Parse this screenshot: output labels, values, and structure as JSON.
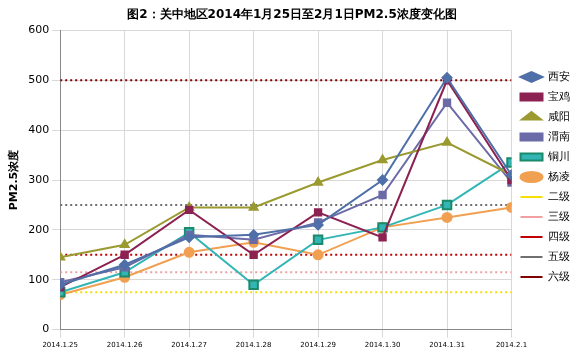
{
  "chart_data": {
    "type": "line",
    "title": "图2：关中地区2014年1月25日至2月1日PM2.5浓度变化图",
    "y_label": "PM2.5浓度",
    "categories": [
      "2014.1.25",
      "2014.1.26",
      "2014.1.27",
      "2014.1.28",
      "2014.1.29",
      "2014.1.30",
      "2014.1.31",
      "2014.2.1"
    ],
    "ylim": [
      0,
      600
    ],
    "yticks": [
      0,
      100,
      200,
      300,
      400,
      500,
      600
    ],
    "grid": true,
    "legend": "right",
    "series": [
      {
        "name": "西安",
        "color": "#4f6fa8",
        "marker": "diamond",
        "line_style": "solid",
        "values": [
          90,
          130,
          185,
          190,
          210,
          300,
          505,
          310
        ]
      },
      {
        "name": "宝鸡",
        "color": "#8b2252",
        "marker": "square",
        "line_style": "solid",
        "values": [
          85,
          150,
          240,
          150,
          235,
          185,
          500,
          300
        ]
      },
      {
        "name": "咸阳",
        "color": "#9a9a30",
        "marker": "triangle",
        "line_style": "solid",
        "values": [
          145,
          170,
          245,
          245,
          295,
          340,
          375,
          310
        ]
      },
      {
        "name": "渭南",
        "color": "#6b6ba8",
        "marker": "square",
        "line_style": "solid",
        "values": [
          95,
          125,
          190,
          180,
          215,
          270,
          455,
          295
        ]
      },
      {
        "name": "铜川",
        "color": "#33b5b5",
        "marker": "x-square",
        "line_style": "solid",
        "values": [
          75,
          115,
          195,
          90,
          180,
          205,
          250,
          335
        ]
      },
      {
        "name": "杨凌",
        "color": "#f0a050",
        "marker": "circle",
        "line_style": "solid",
        "values": [
          70,
          105,
          155,
          175,
          150,
          205,
          225,
          245
        ]
      },
      {
        "name": "二级",
        "color": "#f5e000",
        "marker": "none",
        "line_style": "dotted",
        "values": [
          75,
          75,
          75,
          75,
          75,
          75,
          75,
          75
        ]
      },
      {
        "name": "三级",
        "color": "#f0a0a0",
        "marker": "none",
        "line_style": "dotted",
        "values": [
          115,
          115,
          115,
          115,
          115,
          115,
          115,
          115
        ]
      },
      {
        "name": "四级",
        "color": "#c00000",
        "marker": "none",
        "line_style": "dotted",
        "values": [
          150,
          150,
          150,
          150,
          150,
          150,
          150,
          150
        ]
      },
      {
        "name": "五级",
        "color": "#707070",
        "marker": "none",
        "line_style": "dotted",
        "values": [
          250,
          250,
          250,
          250,
          250,
          250,
          250,
          250
        ]
      },
      {
        "name": "六级",
        "color": "#800000",
        "marker": "none",
        "line_style": "dotted",
        "values": [
          500,
          500,
          500,
          500,
          500,
          500,
          500,
          500
        ]
      }
    ]
  }
}
